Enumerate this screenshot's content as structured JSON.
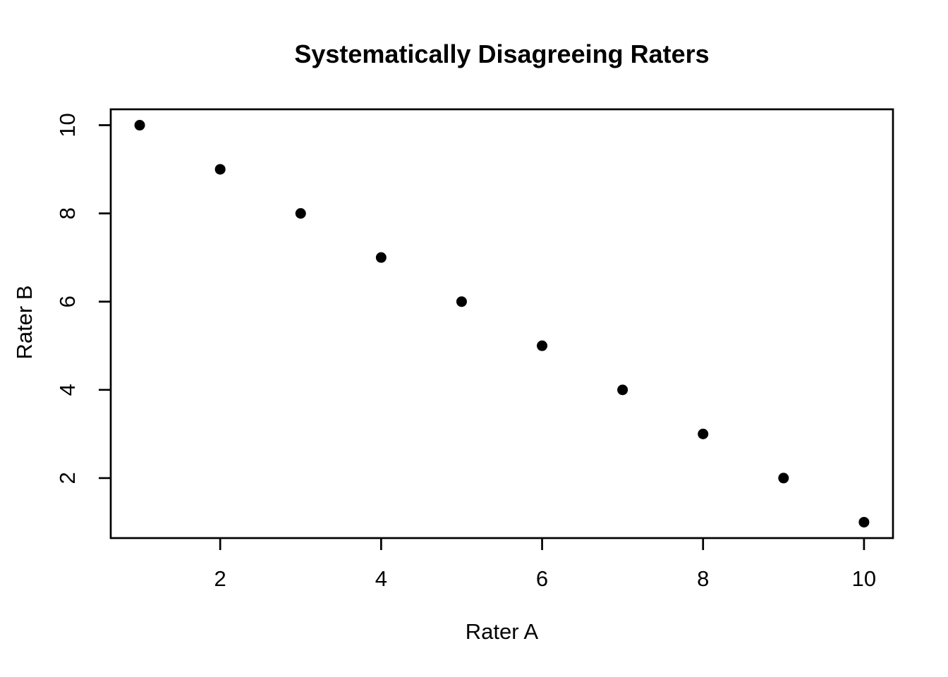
{
  "figure": {
    "background_color": "#ffffff",
    "foreground_color": "#000000"
  },
  "chart_data": {
    "type": "scatter",
    "title": "Systematically Disagreeing Raters",
    "xlabel": "Rater A",
    "ylabel": "Rater B",
    "x": [
      1,
      2,
      3,
      4,
      5,
      6,
      7,
      8,
      9,
      10
    ],
    "y": [
      10,
      9,
      8,
      7,
      6,
      5,
      4,
      3,
      2,
      1
    ],
    "xlim": [
      0.64,
      10.36
    ],
    "ylim": [
      0.64,
      10.36
    ],
    "xticks": [
      2,
      4,
      6,
      8,
      10
    ],
    "yticks": [
      2,
      4,
      6,
      8,
      10
    ],
    "grid": false,
    "legend_position": "none",
    "marker": "filled-circle",
    "point_color": "#000000",
    "axis_color": "#000000"
  }
}
